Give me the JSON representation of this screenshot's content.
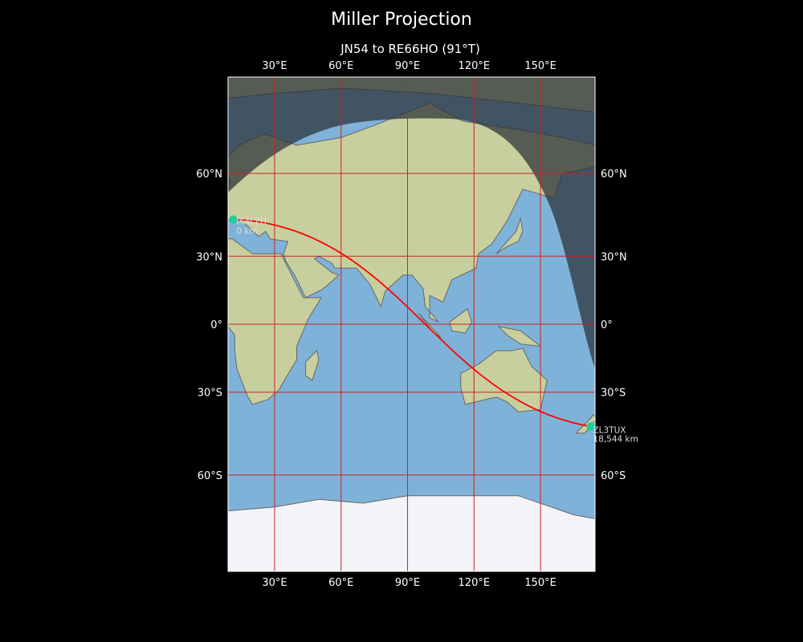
{
  "title": "Miller Projection",
  "subtitle": "JN54 to RE66HO (91°T)",
  "map": {
    "projection": "Miller",
    "extent": {
      "lon": [
        9,
        174.6
      ],
      "lat": [
        -79,
        79
      ]
    },
    "lon_ticks": [
      {
        "value": 30,
        "label": "30°E"
      },
      {
        "value": 60,
        "label": "60°E"
      },
      {
        "value": 90,
        "label": "90°E"
      },
      {
        "value": 120,
        "label": "120°E"
      },
      {
        "value": 150,
        "label": "150°E"
      }
    ],
    "lat_ticks": [
      {
        "value": 60,
        "label": "60°N"
      },
      {
        "value": 30,
        "label": "30°N"
      },
      {
        "value": 0,
        "label": "0°"
      },
      {
        "value": -30,
        "label": "30°S"
      },
      {
        "value": -60,
        "label": "60°S"
      }
    ],
    "colors": {
      "ocean": "#7fb2d8",
      "land": "#c8cf9e",
      "ice": "#f2f4f8",
      "night": "#2a2f36",
      "gridline": "#cc2222",
      "path": "#ff0000",
      "marker": "#1ad19a"
    },
    "start": {
      "label": "IK4LZH",
      "distance": "0 km",
      "lon": 11.3,
      "lat": 44.5
    },
    "end": {
      "label": "ZL3TUX",
      "distance": "18,544 km",
      "lon": 172.6,
      "lat": -43.5
    },
    "path": {
      "from": "JN54",
      "to": "RE66HO",
      "bearing": "91°T"
    }
  }
}
